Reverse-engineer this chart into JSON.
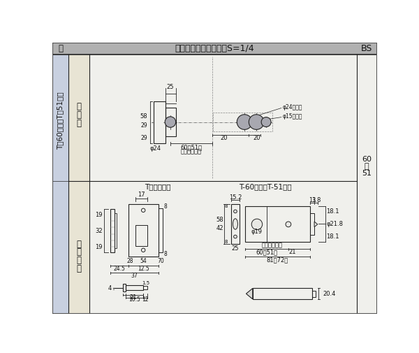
{
  "header_bg": "#b0b0b0",
  "left_col_bg": "#c8d0e0",
  "mid_col_bg": "#e8e4d4",
  "main_bg": "#f0f0ec",
  "white_bg": "#ffffff",
  "header_text": "切欠図・受座・鍵　　S=1/4",
  "bs_text": "BS",
  "kagi_text": "鍵",
  "left_col_text": "T－60空鍵／T－51空鍵",
  "kiriage_text": "切欠図",
  "ukeza_text": "受座・鍵",
  "bs_side": "60\n・\n51",
  "section1_title": "T空鍵用受座",
  "section2_title": "T-60空鍵・T-51空鍵",
  "lc": "#222222",
  "cf": "#a8a8b0",
  "dim_lw": 0.6,
  "body_lw": 0.8
}
